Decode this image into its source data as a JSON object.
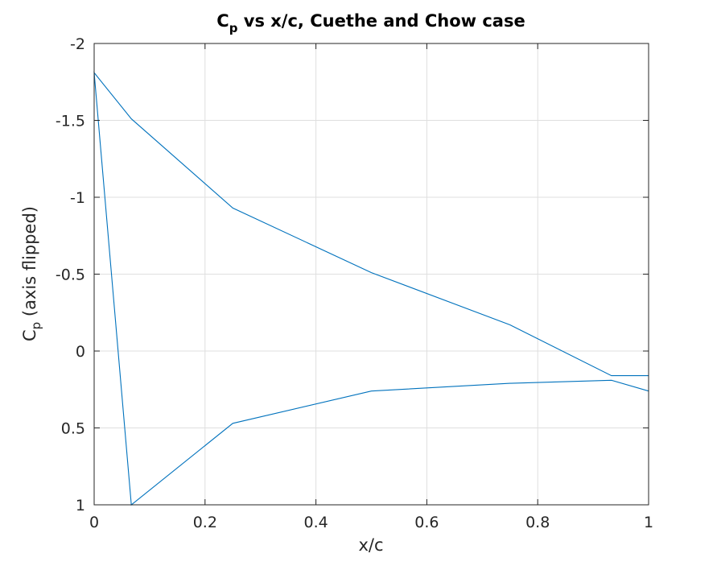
{
  "chart_data": {
    "type": "line",
    "title_main": "C",
    "title_sub": "p",
    "title_rest": " vs x/c, Cuethe and Chow case",
    "xlabel": "x/c",
    "ylabel_main": "C",
    "ylabel_sub": "p",
    "ylabel_rest": " (axis flipped)",
    "xlim": [
      0,
      1
    ],
    "ylim": [
      -2,
      1
    ],
    "y_reversed": true,
    "grid": true,
    "xticks": [
      0,
      0.2,
      0.4,
      0.6,
      0.8,
      1
    ],
    "xtick_labels": [
      "0",
      "0.2",
      "0.4",
      "0.6",
      "0.8",
      "1"
    ],
    "yticks": [
      -2,
      -1.5,
      -1,
      -0.5,
      0,
      0.5,
      1
    ],
    "ytick_labels": [
      "-2",
      "-1.5",
      "-1",
      "-0.5",
      "0",
      "0.5",
      "1"
    ],
    "color": "#0072bd",
    "series": [
      {
        "x": [
          1.0,
          0.933,
          0.75,
          0.5,
          0.25,
          0.067,
          0.0,
          0.067,
          0.25,
          0.5,
          0.75,
          0.933,
          1.0
        ],
        "y": [
          0.16,
          0.16,
          -0.17,
          -0.51,
          -0.93,
          -1.51,
          -1.81,
          1.0,
          0.47,
          0.26,
          0.21,
          0.19,
          0.26
        ]
      }
    ]
  }
}
